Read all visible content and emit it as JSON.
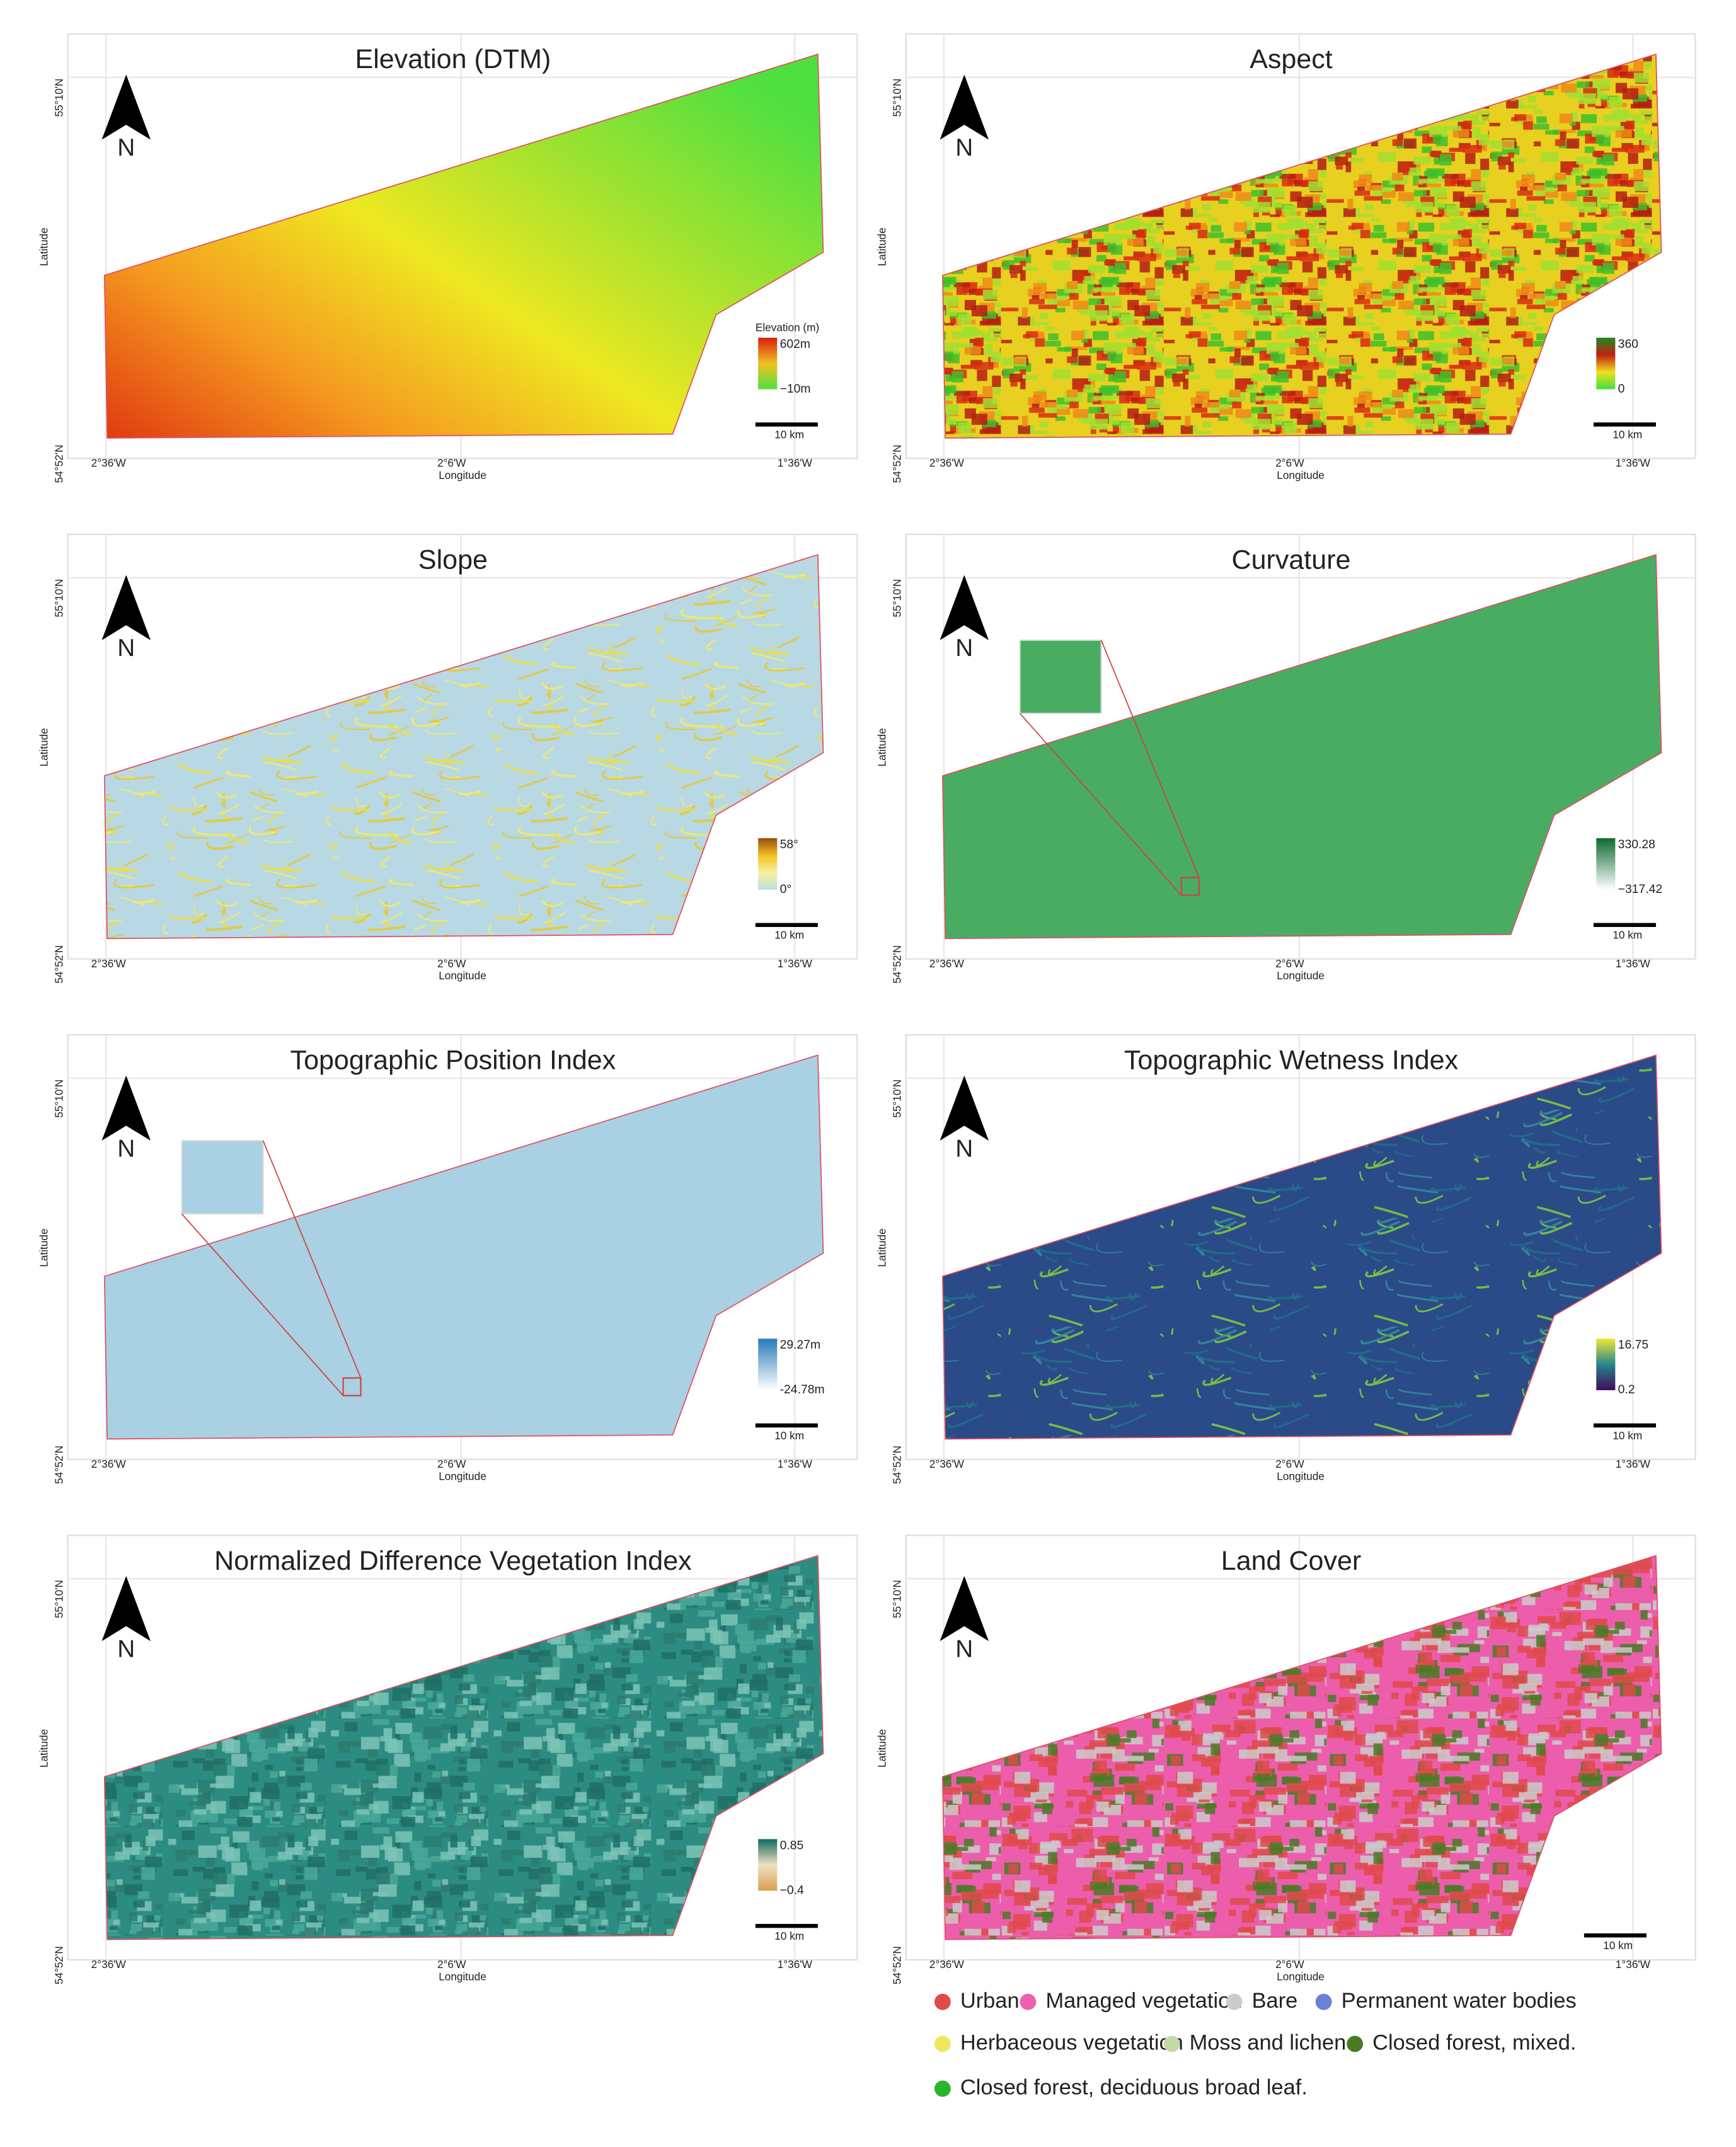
{
  "panels": [
    {
      "title": "Elevation (DTM)",
      "legend": {
        "title": "Elevation (m)",
        "max": "602m",
        "min": "−10m"
      },
      "north": "N",
      "scale": "10 km",
      "lat_ticks": [
        "55°10'N",
        "54°52'N"
      ],
      "lon_ticks": [
        "2°36'W",
        "2°6'W",
        "1°36'W"
      ],
      "x_label": "Longitude",
      "y_label": "Latitude"
    },
    {
      "title": "Aspect",
      "legend": {
        "max": "360",
        "min": "0"
      },
      "north": "N",
      "scale": "10 km",
      "lat_ticks": [
        "55°10'N",
        "54°52'N"
      ],
      "lon_ticks": [
        "2°36'W",
        "2°6'W",
        "1°36'W"
      ],
      "x_label": "Longitude",
      "y_label": "Latitude"
    },
    {
      "title": "Slope",
      "legend": {
        "max": "58°",
        "min": "0°"
      },
      "north": "N",
      "scale": "10 km",
      "lat_ticks": [
        "55°10'N",
        "54°52'N"
      ],
      "lon_ticks": [
        "2°36'W",
        "2°6'W",
        "1°36'W"
      ],
      "x_label": "Longitude",
      "y_label": "Latitude"
    },
    {
      "title": "Curvature",
      "legend": {
        "max": "330.28",
        "min": "−317.42"
      },
      "north": "N",
      "scale": "10 km",
      "lat_ticks": [
        "55°10'N",
        "54°52'N"
      ],
      "lon_ticks": [
        "2°36'W",
        "2°6'W",
        "1°36'W"
      ],
      "x_label": "Longitude",
      "y_label": "Latitude"
    },
    {
      "title": "Topographic Position Index",
      "legend": {
        "max": "29.27m",
        "min": "-24.78m"
      },
      "north": "N",
      "scale": "10 km",
      "lat_ticks": [
        "55°10'N",
        "54°52'N"
      ],
      "lon_ticks": [
        "2°36'W",
        "2°6'W",
        "1°36'W"
      ],
      "x_label": "Longitude",
      "y_label": "Latitude"
    },
    {
      "title": "Topographic Wetness Index",
      "legend": {
        "max": "16.75",
        "min": "0.2"
      },
      "north": "N",
      "scale": "10 km",
      "lat_ticks": [
        "55°10'N",
        "54°52'N"
      ],
      "lon_ticks": [
        "2°36'W",
        "2°6'W",
        "1°36'W"
      ],
      "x_label": "Longitude",
      "y_label": "Latitude"
    },
    {
      "title": "Normalized Difference Vegetation Index",
      "legend": {
        "max": "0.85",
        "min": "−0.4"
      },
      "north": "N",
      "scale": "10 km",
      "lat_ticks": [
        "55°10'N",
        "54°52'N"
      ],
      "lon_ticks": [
        "2°36'W",
        "2°6'W",
        "1°36'W"
      ],
      "x_label": "Longitude",
      "y_label": "Latitude"
    },
    {
      "title": "Land Cover",
      "north": "N",
      "scale": "10 km",
      "lat_ticks": [
        "55°10'N",
        "54°52'N"
      ],
      "lon_ticks": [
        "2°36'W",
        "2°6'W",
        "1°36'W"
      ],
      "x_label": "Longitude",
      "y_label": "Latitude"
    }
  ],
  "land_cover_legend": [
    {
      "label": "Urban",
      "color": "#e04a4a"
    },
    {
      "label": "Managed vegetation",
      "color": "#ee5faf"
    },
    {
      "label": "Bare",
      "color": "#cccccc"
    },
    {
      "label": "Permanent water bodies",
      "color": "#6a7fd6"
    },
    {
      "label": "Herbaceous vegetation",
      "color": "#eee860"
    },
    {
      "label": "Moss and lichen",
      "color": "#c4d8a8"
    },
    {
      "label": "Closed forest, mixed.",
      "color": "#4a7a26"
    },
    {
      "label": "Closed forest, deciduous broad leaf.",
      "color": "#2ab52a"
    }
  ]
}
